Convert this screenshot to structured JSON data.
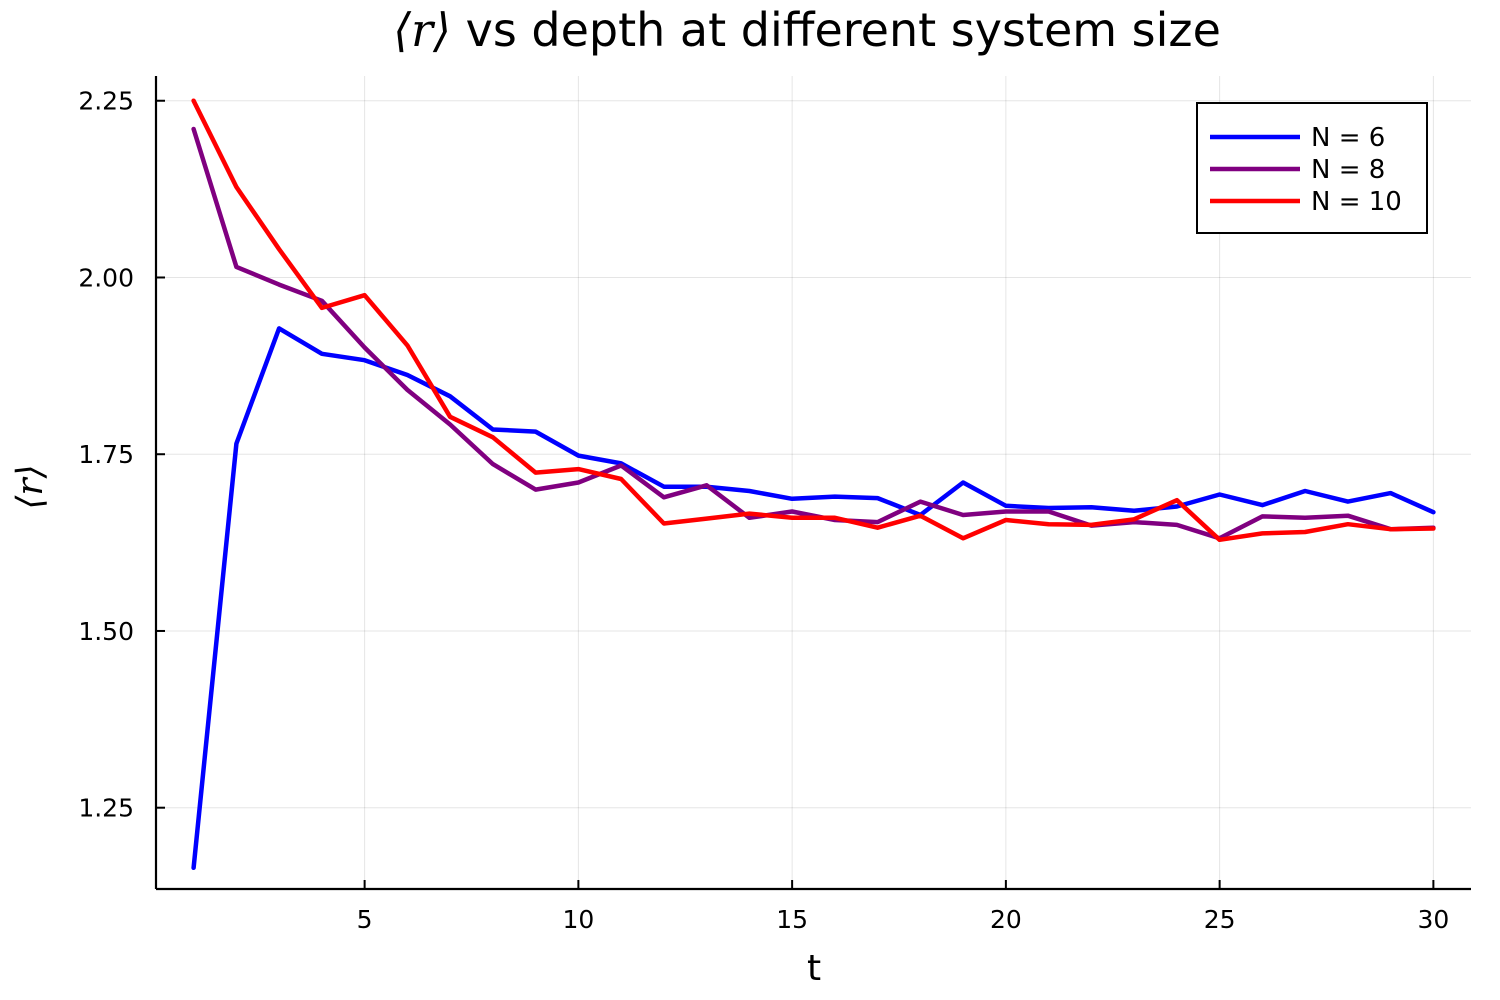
{
  "chart_data": {
    "type": "line",
    "title_math": "⟨r⟩",
    "title_text": " vs depth at different system size",
    "xlabel": "t",
    "ylabel": "⟨r⟩",
    "xlim": [
      0.12,
      30.88
    ],
    "ylim": [
      1.135,
      2.285
    ],
    "xticks": [
      5,
      10,
      15,
      20,
      25,
      30
    ],
    "yticks": [
      1.25,
      1.5,
      1.75,
      2.0,
      2.25
    ],
    "ytick_labels": [
      "1.25",
      "1.50",
      "1.75",
      "2.00",
      "2.25"
    ],
    "grid": true,
    "legend_position": "top-right",
    "x": [
      1,
      2,
      3,
      4,
      5,
      6,
      7,
      8,
      9,
      10,
      11,
      12,
      13,
      14,
      15,
      16,
      17,
      18,
      19,
      20,
      21,
      22,
      23,
      24,
      25,
      26,
      27,
      28,
      29,
      30
    ],
    "series": [
      {
        "name": "N = 6",
        "color": "#0000ff",
        "values": [
          1.165,
          1.765,
          1.928,
          1.892,
          1.883,
          1.862,
          1.832,
          1.785,
          1.782,
          1.748,
          1.737,
          1.704,
          1.704,
          1.698,
          1.687,
          1.69,
          1.688,
          1.664,
          1.71,
          1.677,
          1.674,
          1.675,
          1.67,
          1.676,
          1.693,
          1.678,
          1.698,
          1.683,
          1.695,
          1.668
        ]
      },
      {
        "name": "N = 8",
        "color": "#800080",
        "values": [
          2.21,
          2.015,
          1.99,
          1.967,
          1.901,
          1.841,
          1.792,
          1.736,
          1.7,
          1.71,
          1.734,
          1.689,
          1.706,
          1.66,
          1.669,
          1.657,
          1.654,
          1.683,
          1.664,
          1.669,
          1.669,
          1.649,
          1.654,
          1.65,
          1.631,
          1.662,
          1.66,
          1.663,
          1.644,
          1.646
        ]
      },
      {
        "name": "N = 10",
        "color": "#ff0000",
        "values": [
          2.25,
          2.128,
          2.04,
          1.957,
          1.975,
          1.904,
          1.803,
          1.774,
          1.724,
          1.729,
          1.715,
          1.652,
          1.659,
          1.666,
          1.66,
          1.66,
          1.646,
          1.663,
          1.631,
          1.657,
          1.651,
          1.65,
          1.658,
          1.685,
          1.629,
          1.638,
          1.64,
          1.651,
          1.644,
          1.645
        ]
      }
    ]
  }
}
